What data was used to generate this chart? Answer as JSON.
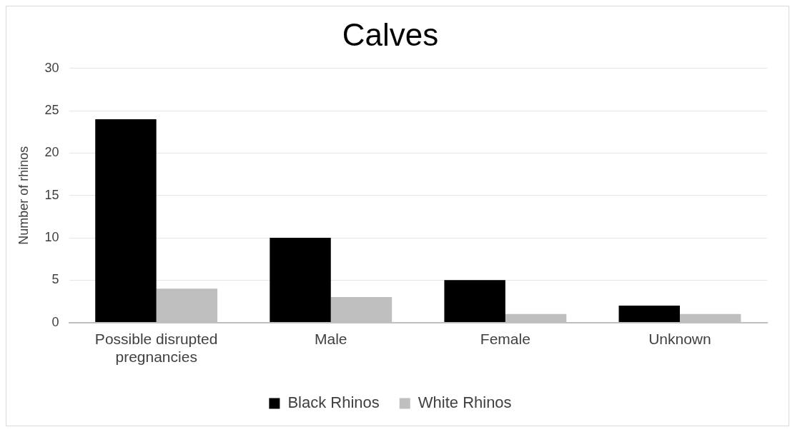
{
  "chart_data": {
    "type": "bar",
    "title": "Calves",
    "ylabel": "Number of rhinos",
    "categories": [
      "Possible disrupted pregnancies",
      "Male",
      "Female",
      "Unknown"
    ],
    "series": [
      {
        "name": "Black Rhinos",
        "color": "#000000",
        "values": [
          24,
          10,
          5,
          2
        ]
      },
      {
        "name": "White Rhinos",
        "color": "#bfbfbf",
        "values": [
          4,
          3,
          1,
          1
        ]
      }
    ],
    "ylim": [
      0,
      30
    ],
    "yticks": [
      0,
      5,
      10,
      15,
      20,
      25,
      30
    ],
    "grid": "y",
    "legend": "bottom"
  }
}
